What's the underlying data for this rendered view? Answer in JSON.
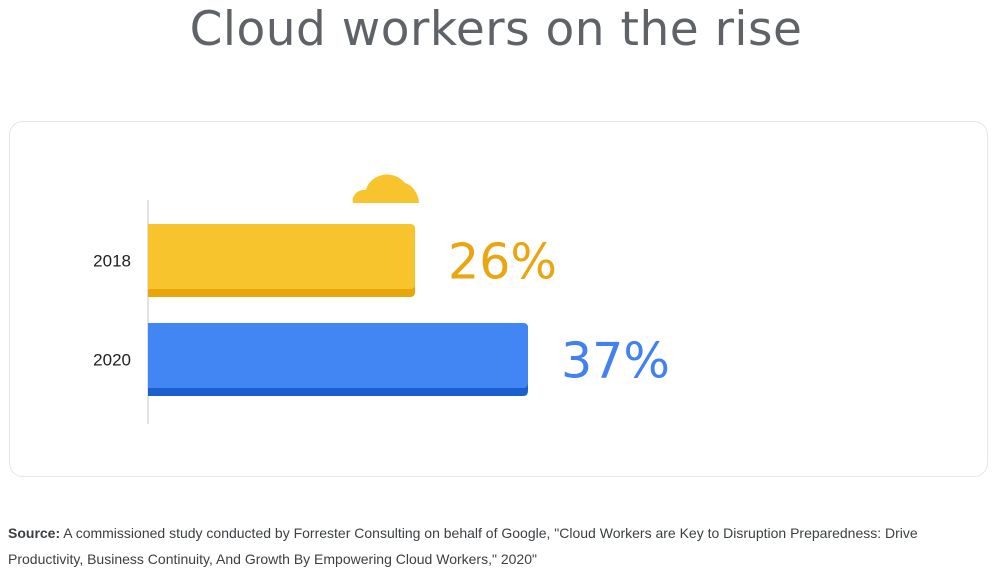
{
  "title": "Cloud workers on the rise",
  "source": {
    "label": "Source:",
    "text": " A commissioned study conducted by Forrester Consulting on behalf of Google, \"Cloud Workers are Key to Disruption Preparedness: Drive Productivity, Business Continuity, And Growth By Empowering Cloud Workers,\" 2020\""
  },
  "colors": {
    "yellow": "#F8C42D",
    "yellow_dark": "#E9A60A",
    "yellow_text": "#EAA510",
    "blue": "#4286F4",
    "blue_dark": "#1A5FCF",
    "blue_text": "#4281EF",
    "axis": "#d9d9d9",
    "cloud": "#F8C42D"
  },
  "chart_data": {
    "type": "bar",
    "orientation": "horizontal",
    "categories": [
      "2018",
      "2020"
    ],
    "values": [
      26,
      37
    ],
    "value_labels": [
      "26%",
      "37%"
    ],
    "unit": "%",
    "grid": false,
    "legend": "none",
    "decoration": "cloud-icon"
  }
}
